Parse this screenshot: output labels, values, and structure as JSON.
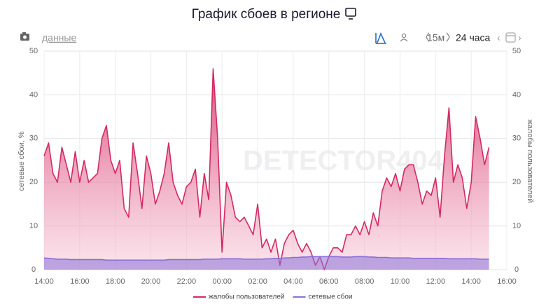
{
  "chart_data": {
    "type": "area",
    "title": "График сбоев в регионе",
    "controls": {
      "data_link": "данные",
      "interval": "15м",
      "period": "24 часа"
    },
    "watermark": "DETECTOR404",
    "ylabel": "сетевые сбои, %",
    "y2label": "жалобы пользователей",
    "x": [
      14,
      14.25,
      14.5,
      14.75,
      15,
      15.25,
      15.5,
      15.75,
      16,
      16.25,
      16.5,
      16.75,
      17,
      17.25,
      17.5,
      17.75,
      18,
      18.25,
      18.5,
      18.75,
      19,
      19.25,
      19.5,
      19.75,
      20,
      20.25,
      20.5,
      20.75,
      21,
      21.25,
      21.5,
      21.75,
      22,
      22.25,
      22.5,
      22.75,
      23,
      23.25,
      23.5,
      23.75,
      24,
      24.25,
      24.5,
      24.75,
      25,
      25.25,
      25.5,
      25.75,
      26,
      26.25,
      26.5,
      26.75,
      27,
      27.25,
      27.5,
      27.75,
      28,
      28.25,
      28.5,
      28.75,
      29,
      29.25,
      29.5,
      29.75,
      30,
      30.25,
      30.5,
      30.75,
      31,
      31.25,
      31.5,
      31.75,
      32,
      32.25,
      32.5,
      32.75,
      33,
      33.25,
      33.5,
      33.75,
      34,
      34.25,
      34.5,
      34.75,
      35,
      35.25,
      35.5,
      35.75,
      36,
      36.25,
      36.5,
      36.75,
      37,
      37.25,
      37.5,
      37.75,
      38,
      38.25,
      38.5,
      38.75,
      39
    ],
    "xlim": [
      14,
      40
    ],
    "xticks": [
      {
        "value": 14,
        "label": "14:00"
      },
      {
        "value": 16,
        "label": "16:00"
      },
      {
        "value": 18,
        "label": "18:00"
      },
      {
        "value": 20,
        "label": "20:00"
      },
      {
        "value": 22,
        "label": "22:00"
      },
      {
        "value": 24,
        "label": "00:00"
      },
      {
        "value": 26,
        "label": "02:00"
      },
      {
        "value": 28,
        "label": "04:00"
      },
      {
        "value": 30,
        "label": "06:00"
      },
      {
        "value": 32,
        "label": "08:00"
      },
      {
        "value": 34,
        "label": "10:00"
      },
      {
        "value": 36,
        "label": "12:00"
      },
      {
        "value": 38,
        "label": "14:00"
      },
      {
        "value": 40,
        "label": "16:00"
      }
    ],
    "ylim": [
      0,
      50
    ],
    "yticks": [
      0,
      10,
      20,
      30,
      40,
      50
    ],
    "y2lim": [
      0,
      50
    ],
    "y2ticks": [
      0,
      10,
      20,
      30,
      40,
      50
    ],
    "grid": true,
    "series": [
      {
        "name": "жалобы пользователей",
        "color": "#d42a62",
        "axis": "y2",
        "values": [
          26,
          29,
          22,
          20,
          28,
          24,
          20,
          27,
          20,
          25,
          20,
          21,
          22,
          30,
          33,
          25,
          22,
          25,
          14,
          12,
          29,
          22,
          14,
          26,
          22,
          15,
          18,
          22,
          29,
          20,
          17,
          15,
          19,
          20,
          23,
          12,
          22,
          16,
          46,
          30,
          4,
          20,
          17,
          12,
          11,
          12,
          10,
          8,
          15,
          5,
          7,
          4,
          7,
          1,
          6,
          8,
          9,
          6,
          4,
          6,
          4,
          1,
          3,
          0,
          3,
          5,
          5,
          4,
          8,
          8,
          10,
          8,
          11,
          8,
          13,
          10,
          18,
          21,
          19,
          22,
          18,
          23,
          24,
          24,
          20,
          15,
          18,
          17,
          21,
          12,
          26,
          37,
          20,
          24,
          21,
          14,
          20,
          35,
          30,
          24,
          28
        ]
      },
      {
        "name": "сетевые сбои",
        "color": "#8b6fd8",
        "values": [
          2.7,
          2.6,
          2.5,
          2.4,
          2.4,
          2.4,
          2.3,
          2.3,
          2.3,
          2.3,
          2.3,
          2.3,
          2.3,
          2.3,
          2.2,
          2.2,
          2.2,
          2.2,
          2.2,
          2.2,
          2.2,
          2.2,
          2.2,
          2.2,
          2.2,
          2.2,
          2.2,
          2.2,
          2.3,
          2.3,
          2.3,
          2.3,
          2.3,
          2.3,
          2.3,
          2.3,
          2.4,
          2.4,
          2.4,
          2.4,
          2.5,
          2.5,
          2.5,
          2.5,
          2.5,
          2.4,
          2.4,
          2.4,
          2.4,
          2.4,
          2.5,
          2.5,
          2.6,
          2.6,
          2.7,
          2.7,
          2.8,
          2.8,
          2.9,
          2.9,
          3.0,
          3.0,
          3.0,
          3.0,
          3.0,
          3.0,
          3.0,
          2.9,
          2.9,
          2.9,
          3.0,
          3.0,
          3.0,
          2.9,
          2.9,
          2.8,
          2.8,
          2.8,
          2.7,
          2.7,
          2.7,
          2.7,
          2.7,
          2.6,
          2.6,
          2.6,
          2.6,
          2.6,
          2.6,
          2.6,
          2.6,
          2.5,
          2.5,
          2.5,
          2.5,
          2.5,
          2.5,
          2.5,
          2.4,
          2.4,
          2.4
        ]
      }
    ]
  }
}
